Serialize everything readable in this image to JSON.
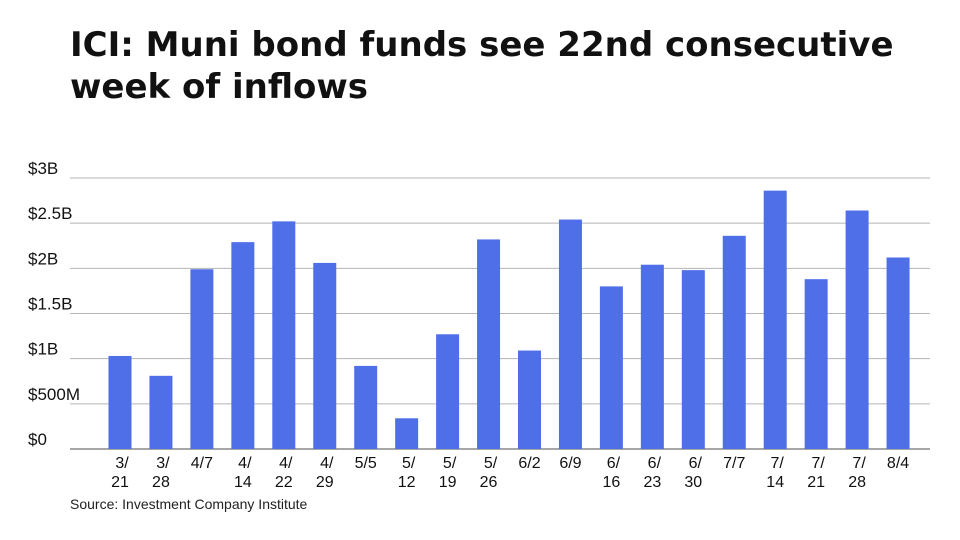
{
  "title": "ICI: Muni bond funds see 22nd consecutive week of inflows",
  "source": "Source: Investment Company Institute",
  "colors": {
    "bar": "#4F6FE8",
    "grid": "#B5B5B5",
    "axis": "#888888",
    "text": "#111111"
  },
  "chart_data": {
    "type": "bar",
    "title": "ICI: Muni bond funds see 22nd consecutive week of inflows",
    "xlabel": "",
    "ylabel": "",
    "ylim": [
      0,
      3
    ],
    "unit": "billions USD",
    "y_ticks": [
      {
        "value": 0,
        "label": "$0"
      },
      {
        "value": 0.5,
        "label": "$500M"
      },
      {
        "value": 1,
        "label": "$1B"
      },
      {
        "value": 1.5,
        "label": "$1.5B"
      },
      {
        "value": 2,
        "label": "$2B"
      },
      {
        "value": 2.5,
        "label": "$2.5B"
      },
      {
        "value": 3,
        "label": "$3B"
      }
    ],
    "grid": true,
    "categories": [
      [
        "3/",
        "21"
      ],
      [
        "3/",
        "28"
      ],
      [
        "4/7"
      ],
      [
        "4/",
        "14"
      ],
      [
        "4/",
        "22"
      ],
      [
        "4/",
        "29"
      ],
      [
        "5/5"
      ],
      [
        "5/",
        "12"
      ],
      [
        "5/",
        "19"
      ],
      [
        "5/",
        "26"
      ],
      [
        "6/2"
      ],
      [
        "6/9"
      ],
      [
        "6/",
        "16"
      ],
      [
        "6/",
        "23"
      ],
      [
        "6/",
        "30"
      ],
      [
        "7/7"
      ],
      [
        "7/",
        "14"
      ],
      [
        "7/",
        "21"
      ],
      [
        "7/",
        "28"
      ],
      [
        "8/4"
      ]
    ],
    "values": [
      1.03,
      0.81,
      1.99,
      2.29,
      2.52,
      2.06,
      0.92,
      0.34,
      1.27,
      2.32,
      1.09,
      2.54,
      1.8,
      2.04,
      1.98,
      2.36,
      2.86,
      1.88,
      2.64,
      2.12
    ]
  }
}
